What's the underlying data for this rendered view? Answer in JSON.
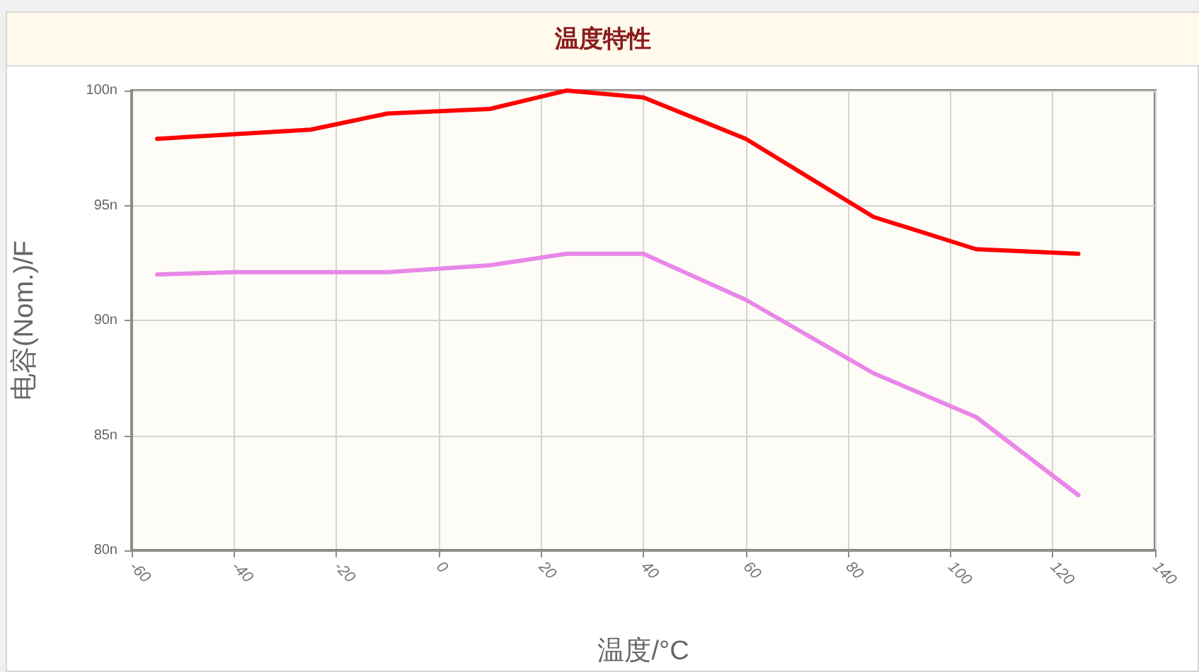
{
  "chart_data": {
    "type": "line",
    "title": "温度特性",
    "xlabel": "温度/°C",
    "ylabel": "电容(Nom.)/F",
    "x": [
      -55,
      -40,
      -25,
      -10,
      10,
      25,
      40,
      60,
      85,
      105,
      125
    ],
    "series": [
      {
        "color": "#ff0000",
        "values": [
          97.9,
          98.1,
          98.3,
          99.0,
          99.2,
          100.0,
          99.7,
          97.9,
          94.5,
          93.1,
          92.9
        ]
      },
      {
        "color": "#e887e8",
        "values": [
          92.0,
          92.1,
          92.1,
          92.1,
          92.4,
          92.9,
          92.9,
          90.9,
          87.7,
          85.8,
          82.4
        ]
      }
    ],
    "xlim": [
      -60,
      140
    ],
    "xticks": [
      -60,
      -40,
      -20,
      0,
      20,
      40,
      60,
      80,
      100,
      120,
      140
    ],
    "ylim": [
      80,
      100
    ],
    "yticks": [
      {
        "value": 80,
        "label": "80n"
      },
      {
        "value": 85,
        "label": "85n"
      },
      {
        "value": 90,
        "label": "90n"
      },
      {
        "value": 95,
        "label": "95n"
      },
      {
        "value": 100,
        "label": "100n"
      }
    ],
    "grid": true,
    "line_style": "solid"
  }
}
